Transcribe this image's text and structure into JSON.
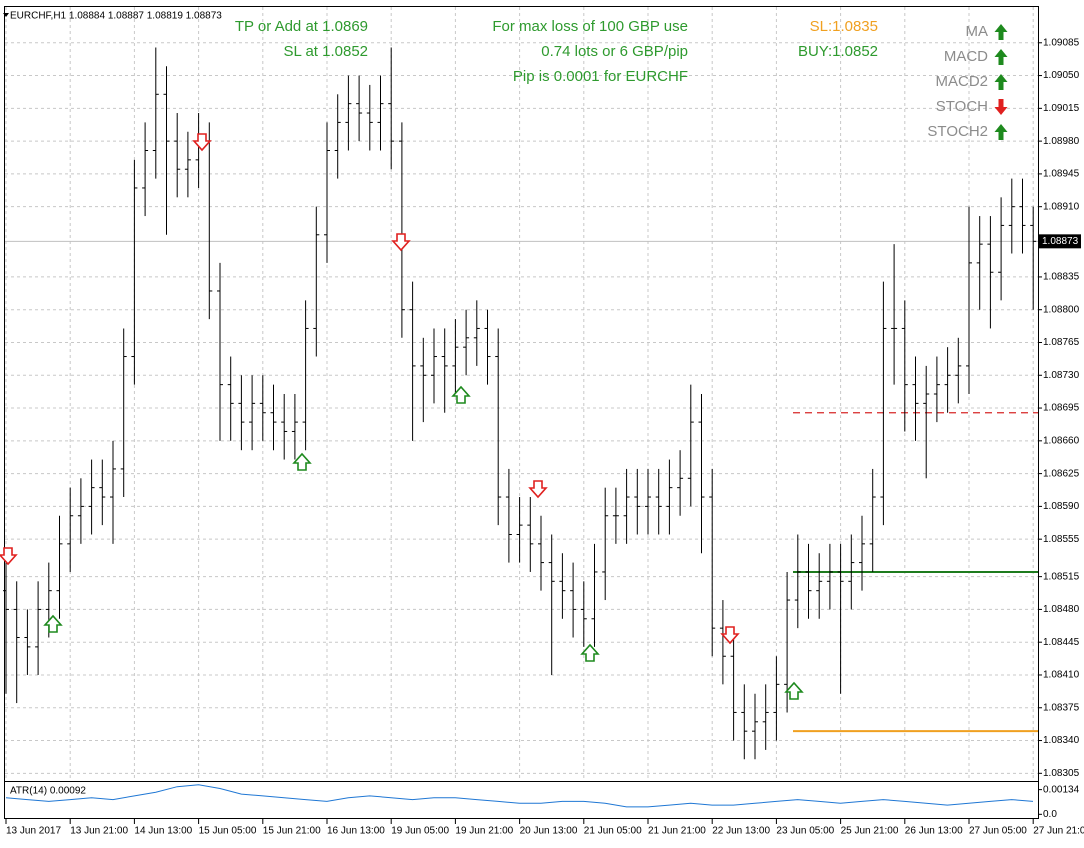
{
  "chart_data": [
    {
      "type": "ohlc",
      "title": "EURCHF,H1  1.08884 1.08887 1.08819 1.08873",
      "categories": [
        "13 Jun 2017",
        null,
        null,
        null,
        null,
        null,
        "13 Jun 21:00",
        null,
        null,
        null,
        null,
        null,
        "14 Jun 13:00",
        null,
        null,
        null,
        null,
        null,
        "15 Jun 05:00",
        null,
        null,
        null,
        null,
        null,
        "15 Jun 21:00",
        null,
        null,
        null,
        null,
        null,
        "16 Jun 13:00",
        null,
        null,
        null,
        null,
        null,
        "19 Jun 05:00",
        null,
        null,
        null,
        null,
        null,
        "19 Jun 21:00",
        null,
        null,
        null,
        null,
        null,
        "20 Jun 13:00",
        null,
        null,
        null,
        null,
        null,
        "21 Jun 05:00",
        null,
        null,
        null,
        null,
        null,
        "21 Jun 21:00",
        null,
        null,
        null,
        null,
        null,
        "22 Jun 13:00",
        null,
        null,
        null,
        null,
        null,
        "23 Jun 05:00",
        null,
        null,
        null,
        null,
        null,
        "25 Jun 21:00",
        null,
        null,
        null,
        null,
        null,
        "26 Jun 13:00",
        null,
        null,
        null,
        null,
        null,
        "27 Jun 05:00",
        null,
        null,
        null,
        null,
        null,
        "27 Jun 21:00"
      ],
      "open": [
        1.085,
        1.0848,
        1.0845,
        1.0844,
        1.0848,
        1.085,
        1.0855,
        1.0858,
        1.0859,
        1.0861,
        1.086,
        1.0863,
        1.0875,
        1.0893,
        1.0897,
        1.0903,
        1.0898,
        1.0895,
        1.0896,
        1.0898,
        1.0882,
        1.0872,
        1.087,
        1.0868,
        1.087,
        1.0869,
        1.0868,
        1.0867,
        1.0868,
        1.0878,
        1.0888,
        1.0897,
        1.09,
        1.0902,
        1.0901,
        1.09,
        1.0902,
        1.0898,
        1.088,
        1.0874,
        1.0873,
        1.0875,
        1.0874,
        1.0876,
        1.0877,
        1.0878,
        1.0875,
        1.086,
        1.0856,
        1.0857,
        1.0855,
        1.0853,
        1.0851,
        1.085,
        1.0848,
        1.0847,
        1.0852,
        1.0858,
        1.0858,
        1.086,
        1.0859,
        1.086,
        1.0859,
        1.0861,
        1.0862,
        1.0868,
        1.086,
        1.0846,
        1.0843,
        1.0837,
        1.0835,
        1.0836,
        1.0837,
        1.084,
        1.0849,
        1.0852,
        1.085,
        1.0851,
        1.0852,
        1.0851,
        1.0853,
        1.0855,
        1.086,
        1.0878,
        1.0878,
        1.0872,
        1.087,
        1.0871,
        1.0872,
        1.0873,
        1.0874,
        1.0885,
        1.0887,
        1.0884,
        1.0889,
        1.0891,
        1.0889
      ],
      "high": [
        1.0853,
        1.0851,
        1.0848,
        1.0851,
        1.0853,
        1.0858,
        1.0861,
        1.0862,
        1.0864,
        1.0864,
        1.0866,
        1.0878,
        1.0896,
        1.09,
        1.0908,
        1.0906,
        1.0901,
        1.0899,
        1.0901,
        1.09,
        1.0885,
        1.0875,
        1.0873,
        1.0873,
        1.0873,
        1.0872,
        1.0871,
        1.0871,
        1.0881,
        1.0891,
        1.09,
        1.0903,
        1.0905,
        1.0905,
        1.0904,
        1.0905,
        1.0908,
        1.09,
        1.0883,
        1.0877,
        1.0878,
        1.0878,
        1.0879,
        1.088,
        1.0881,
        1.088,
        1.0878,
        1.0863,
        1.086,
        1.086,
        1.0858,
        1.0856,
        1.0854,
        1.0853,
        1.0851,
        1.0855,
        1.0861,
        1.0861,
        1.0863,
        1.0863,
        1.0863,
        1.0863,
        1.0864,
        1.0865,
        1.0872,
        1.0871,
        1.0863,
        1.0849,
        1.0846,
        1.084,
        1.0839,
        1.084,
        1.0843,
        1.0852,
        1.0856,
        1.0855,
        1.0854,
        1.0855,
        1.0855,
        1.0856,
        1.0858,
        1.0863,
        1.0883,
        1.0887,
        1.0881,
        1.0875,
        1.0874,
        1.0875,
        1.0876,
        1.0877,
        1.0891,
        1.089,
        1.089,
        1.0892,
        1.0894,
        1.0894,
        1.0891
      ],
      "low": [
        1.0839,
        1.0838,
        1.0841,
        1.0841,
        1.0845,
        1.0847,
        1.0852,
        1.0855,
        1.0856,
        1.0857,
        1.0855,
        1.086,
        1.0872,
        1.089,
        1.0894,
        1.0888,
        1.0892,
        1.0892,
        1.0893,
        1.0879,
        1.0866,
        1.0866,
        1.0865,
        1.0865,
        1.0866,
        1.0865,
        1.0864,
        1.0864,
        1.0865,
        1.0875,
        1.0885,
        1.0894,
        1.0897,
        1.0898,
        1.0897,
        1.0897,
        1.0895,
        1.0877,
        1.0866,
        1.0868,
        1.087,
        1.0869,
        1.0871,
        1.0873,
        1.0874,
        1.0872,
        1.0857,
        1.0853,
        1.0853,
        1.0852,
        1.085,
        1.0841,
        1.0847,
        1.0845,
        1.0844,
        1.0844,
        1.0849,
        1.0855,
        1.0855,
        1.0856,
        1.0856,
        1.0856,
        1.0856,
        1.0858,
        1.0859,
        1.0854,
        1.0843,
        1.084,
        1.0834,
        1.0832,
        1.0832,
        1.0833,
        1.0834,
        1.0837,
        1.0846,
        1.0847,
        1.0847,
        1.0848,
        1.0839,
        1.0848,
        1.085,
        1.0852,
        1.0857,
        1.0872,
        1.0867,
        1.0866,
        1.0862,
        1.0868,
        1.0869,
        1.087,
        1.0871,
        1.088,
        1.0878,
        1.0881,
        1.0886,
        1.0886,
        1.088
      ],
      "close": [
        1.0848,
        1.0845,
        1.0844,
        1.0848,
        1.085,
        1.0855,
        1.0858,
        1.0859,
        1.0861,
        1.086,
        1.0863,
        1.0875,
        1.0893,
        1.0897,
        1.0903,
        1.0898,
        1.0895,
        1.0896,
        1.0898,
        1.0882,
        1.0872,
        1.087,
        1.0868,
        1.087,
        1.0869,
        1.0868,
        1.0867,
        1.0868,
        1.0878,
        1.0888,
        1.0897,
        1.09,
        1.0902,
        1.0901,
        1.09,
        1.0902,
        1.0898,
        1.088,
        1.0874,
        1.0873,
        1.0875,
        1.0874,
        1.0876,
        1.0877,
        1.0878,
        1.0875,
        1.086,
        1.0856,
        1.0857,
        1.0855,
        1.0853,
        1.0851,
        1.085,
        1.0848,
        1.0847,
        1.0852,
        1.0858,
        1.0858,
        1.086,
        1.0859,
        1.086,
        1.0859,
        1.0861,
        1.0862,
        1.0868,
        1.086,
        1.0846,
        1.0843,
        1.0837,
        1.0835,
        1.0836,
        1.0837,
        1.084,
        1.0849,
        1.0852,
        1.085,
        1.0851,
        1.0852,
        1.0851,
        1.0853,
        1.0855,
        1.086,
        1.0878,
        1.0878,
        1.0872,
        1.087,
        1.0871,
        1.0872,
        1.0873,
        1.0874,
        1.0885,
        1.0887,
        1.0884,
        1.0889,
        1.0891,
        1.0889,
        1.08873
      ],
      "color": "#000000",
      "ylim": [
        1.083,
        1.0912
      ],
      "yticks": [
        1.09085,
        {
          "value": 1.0905,
          "label": "1.09050"
        },
        1.09015,
        {
          "value": 1.0898,
          "label": "1.08980"
        },
        1.08945,
        {
          "value": 1.0891,
          "label": "1.08910"
        },
        1.08835,
        {
          "value": 1.088,
          "label": "1.08800"
        },
        1.08765,
        {
          "value": 1.0873,
          "label": "1.08730"
        },
        1.08695,
        {
          "value": 1.0866,
          "label": "1.08660"
        },
        1.08625,
        {
          "value": 1.0859,
          "label": "1.08590"
        },
        1.08555,
        1.08515,
        {
          "value": 1.0848,
          "label": "1.08480"
        },
        1.08445,
        {
          "value": 1.0841,
          "label": "1.08410"
        },
        1.08375,
        {
          "value": 1.0834,
          "label": "1.08340"
        },
        1.08305
      ],
      "grid": true,
      "current_price": 1.08873,
      "levels": [
        {
          "value": 1.0869,
          "color": "#d62728",
          "style": "dashed"
        },
        {
          "value": 1.0852,
          "color": "#1e7b1e",
          "style": "solid"
        },
        {
          "value": 1.0835,
          "color": "#f0a020",
          "style": "solid"
        }
      ],
      "annotations": [
        {
          "text": "TP or Add at 1.0869",
          "color": "#2e9a2e"
        },
        {
          "text": "SL at 1.0852",
          "color": "#2e9a2e"
        },
        {
          "text": "For max loss of 100 GBP use",
          "color": "#2e9a2e"
        },
        {
          "text": "0.74 lots or 6 GBP/pip",
          "color": "#2e9a2e"
        },
        {
          "text": "Pip is 0.0001 for EURCHF",
          "color": "#2e9a2e"
        },
        {
          "text": "SL:1.0835",
          "color": "#f0a020"
        },
        {
          "text": "BUY:1.0852",
          "color": "#2e9a2e"
        }
      ],
      "indicators": [
        {
          "label": "MA",
          "signal": "up"
        },
        {
          "label": "MACD",
          "signal": "up"
        },
        {
          "label": "MACD2",
          "signal": "up"
        },
        {
          "label": "STOCH",
          "signal": "down"
        },
        {
          "label": "STOCH2",
          "signal": "up"
        }
      ]
    },
    {
      "type": "line",
      "title": "ATR(14) 0.00092",
      "values": [
        0.0009,
        0.0008,
        0.0007,
        0.0008,
        0.0009,
        0.0008,
        0.001,
        0.0012,
        0.0015,
        0.0016,
        0.0014,
        0.0011,
        0.001,
        0.0009,
        0.0008,
        0.0007,
        0.0009,
        0.001,
        0.0009,
        0.0008,
        0.0009,
        0.0009,
        0.0008,
        0.0007,
        0.0006,
        0.0006,
        0.0007,
        0.0007,
        0.0006,
        0.0004,
        0.0004,
        0.0005,
        0.0006,
        0.0005,
        0.0005,
        0.0006,
        0.0007,
        0.0008,
        0.0007,
        0.0006,
        0.0007,
        0.0008,
        0.0007,
        0.0006,
        0.0005,
        0.0006,
        0.0007,
        0.0008,
        0.0007
      ],
      "color": "#1f77d4",
      "ylim": [
        -0.0002,
        0.0017
      ],
      "yticks": [
        {
          "value": 0.00134,
          "label": "0.00134"
        },
        {
          "value": 0,
          "label": "0.0"
        }
      ]
    }
  ]
}
